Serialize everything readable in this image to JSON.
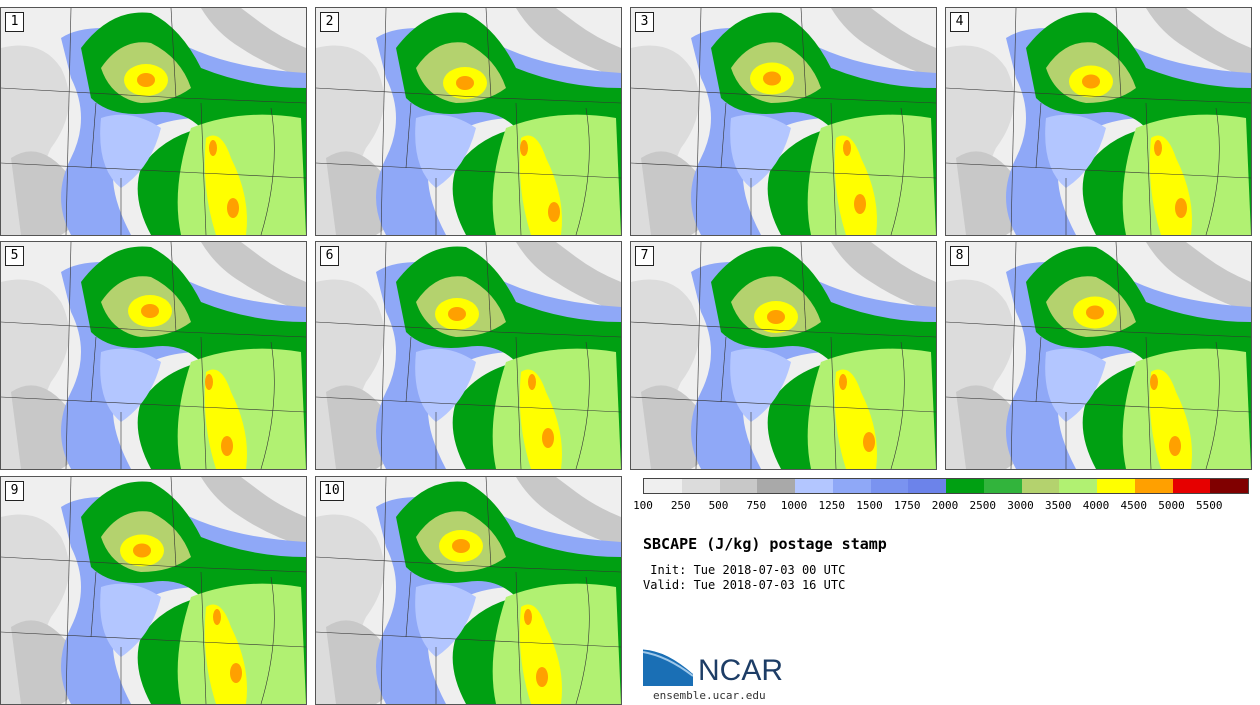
{
  "panels": [
    {
      "label": "1"
    },
    {
      "label": "2"
    },
    {
      "label": "3"
    },
    {
      "label": "4"
    },
    {
      "label": "5"
    },
    {
      "label": "6"
    },
    {
      "label": "7"
    },
    {
      "label": "8"
    },
    {
      "label": "9"
    },
    {
      "label": "10"
    }
  ],
  "colorbar": {
    "colors": [
      "#efefef",
      "#dcdcdc",
      "#c8c8c8",
      "#a9a9a9",
      "#b3c6ff",
      "#8fa8f7",
      "#7a93f0",
      "#6c83ea",
      "#00a012",
      "#32b43c",
      "#b4d26e",
      "#b1f172",
      "#ffff00",
      "#ffa000",
      "#e60000",
      "#800000"
    ],
    "labels": [
      "100",
      "250",
      "500",
      "750",
      "1000",
      "1250",
      "1500",
      "1750",
      "2000",
      "2500",
      "3000",
      "3500",
      "4000",
      "4500",
      "5000",
      "5500"
    ]
  },
  "title": "SBCAPE (J/kg) postage stamp",
  "init": " Init: Tue 2018-07-03 00 UTC",
  "valid": "Valid: Tue 2018-07-03 16 UTC",
  "logo_text": "NCAR",
  "site": "ensemble.ucar.edu"
}
